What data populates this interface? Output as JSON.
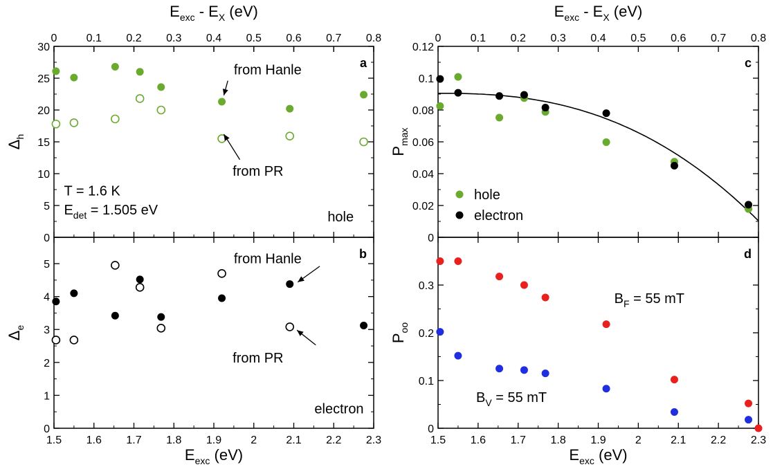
{
  "chart_data": [
    {
      "id": "a",
      "type": "scatter",
      "panel_label": "a",
      "xlim": [
        1.5,
        2.3
      ],
      "ylim": [
        0,
        30
      ],
      "yticks": [
        "0",
        "5",
        "10",
        "15",
        "20",
        "25",
        "30"
      ],
      "ylabel": {
        "main": "Δ",
        "sub": "h"
      },
      "top_axis": {
        "label": {
          "main": "E",
          "sub": "exc",
          "mid": " - E",
          "sub2": "X",
          "tail": " (eV)"
        },
        "ticks": [
          "0",
          "0.1",
          "0.2",
          "0.3",
          "0.4",
          "0.5",
          "0.6",
          "0.7",
          "0.8"
        ],
        "lim": [
          0,
          0.8
        ]
      },
      "series": [
        {
          "marker": "filled",
          "color": "#6aaa2e",
          "x": [
            1.505,
            1.55,
            1.653,
            1.715,
            1.768,
            1.92,
            2.09,
            2.275
          ],
          "y": [
            26.1,
            25.1,
            26.8,
            26.0,
            23.6,
            21.3,
            20.2,
            22.4
          ]
        },
        {
          "marker": "open",
          "color": "#6aaa2e",
          "x": [
            1.505,
            1.55,
            1.653,
            1.715,
            1.768,
            1.92,
            2.09,
            2.275
          ],
          "y": [
            17.8,
            18.0,
            18.6,
            21.8,
            20.0,
            15.5,
            15.9,
            15.0
          ]
        }
      ],
      "annotations": [
        {
          "text": "from Hanle",
          "x": 1.95,
          "y": 25.6,
          "arrow_to": [
            1.925,
            22.3
          ],
          "arrow_from": [
            1.935,
            24.6
          ]
        },
        {
          "text": "from PR",
          "x": 1.947,
          "y": 9.7,
          "arrow_to": [
            1.925,
            16.2
          ],
          "arrow_from": [
            1.965,
            12.2
          ]
        },
        {
          "text": "T = 1.6 K",
          "x": 1.525,
          "y": 6.6
        },
        {
          "text": "hole",
          "x": 2.25,
          "y": 2.5,
          "anchor": "end"
        }
      ],
      "det": {
        "main": "E",
        "sub": "det",
        "tail": " = 1.505 eV"
      }
    },
    {
      "id": "b",
      "type": "scatter",
      "panel_label": "b",
      "xlim": [
        1.5,
        2.3
      ],
      "ylim": [
        0,
        5.8
      ],
      "yticks": [
        "0",
        "1",
        "2",
        "3",
        "4",
        "5"
      ],
      "xticks": [
        "1.5",
        "1.6",
        "1.7",
        "1.8",
        "1.9",
        "2",
        "2.1",
        "2.2",
        "2.3"
      ],
      "xlabel": {
        "main": "E",
        "sub": "exc",
        "tail": " (eV)"
      },
      "ylabel": {
        "main": "Δ",
        "sub": "e"
      },
      "series": [
        {
          "marker": "filled",
          "color": "#000000",
          "x": [
            1.505,
            1.55,
            1.653,
            1.715,
            1.768,
            1.92,
            2.09,
            2.275
          ],
          "y": [
            3.85,
            4.1,
            3.42,
            4.52,
            3.38,
            3.95,
            4.38,
            3.12
          ]
        },
        {
          "marker": "open",
          "color": "#000000",
          "x": [
            1.505,
            1.55,
            1.653,
            1.715,
            1.768,
            1.92,
            2.09
          ],
          "y": [
            2.68,
            2.68,
            4.95,
            4.28,
            3.04,
            4.7,
            3.08
          ]
        }
      ],
      "annotations": [
        {
          "text": "from Hanle",
          "x": 1.95,
          "y": 5.01,
          "arrow_to": [
            2.11,
            4.44
          ],
          "arrow_from": [
            2.165,
            4.92
          ]
        },
        {
          "text": "from PR",
          "x": 1.947,
          "y": 2.0,
          "arrow_to": [
            2.108,
            2.98
          ],
          "arrow_from": [
            2.155,
            2.53
          ]
        },
        {
          "text": "electron",
          "x": 2.275,
          "y": 0.45,
          "anchor": "end"
        }
      ]
    },
    {
      "id": "c",
      "type": "scatter",
      "panel_label": "c",
      "xlim": [
        0,
        0.8
      ],
      "ylim": [
        0,
        0.12
      ],
      "yticks": [
        "0",
        "0.02",
        "0.04",
        "0.06",
        "0.08",
        "0.1",
        "0.12"
      ],
      "ylabel": {
        "main": "P",
        "sub": "max"
      },
      "top_axis": {
        "label": {
          "main": "E",
          "sub": "exc",
          "mid": " - E",
          "sub2": "X",
          "tail": " (eV)"
        },
        "ticks": [
          "0",
          "0.1",
          "0.2",
          "0.3",
          "0.4",
          "0.5",
          "0.6",
          "0.7",
          "0.8"
        ],
        "lim": [
          0,
          0.8
        ]
      },
      "series": [
        {
          "name": "hole",
          "marker": "filled",
          "color": "#6aaa2e",
          "x": [
            0.005,
            0.05,
            0.153,
            0.215,
            0.268,
            0.42,
            0.59,
            0.775
          ],
          "y": [
            0.0825,
            0.1008,
            0.0752,
            0.0875,
            0.0788,
            0.0598,
            0.0475,
            0.0178
          ]
        },
        {
          "name": "electron",
          "marker": "filled",
          "color": "#000000",
          "x": [
            0.005,
            0.05,
            0.153,
            0.215,
            0.268,
            0.42,
            0.59,
            0.775
          ],
          "y": [
            0.0995,
            0.0908,
            0.0888,
            0.0895,
            0.0815,
            0.078,
            0.045,
            0.0205
          ]
        }
      ],
      "fit_curve": {
        "a": 0.0905,
        "b": 0.14,
        "c": 2.5,
        "x": [
          0,
          0.8
        ],
        "color": "#000000"
      },
      "legend": "lower-left"
    },
    {
      "id": "d",
      "type": "scatter",
      "panel_label": "d",
      "xlim": [
        1.5,
        2.3
      ],
      "ylim": [
        0,
        0.4
      ],
      "yticks": [
        "0",
        "0.1",
        "0.2",
        "0.3"
      ],
      "xticks": [
        "1.5",
        "1.6",
        "1.7",
        "1.8",
        "1.9",
        "2",
        "2.1",
        "2.2",
        "2.3"
      ],
      "xlabel": {
        "main": "E",
        "sub": "exc",
        "tail": " (eV)"
      },
      "ylabel": {
        "main": "P",
        "sub": "oo"
      },
      "series": [
        {
          "marker": "filled",
          "color": "#e8201e",
          "x": [
            1.505,
            1.55,
            1.653,
            1.715,
            1.768,
            1.92,
            2.09,
            2.275,
            2.3
          ],
          "y": [
            0.35,
            0.35,
            0.318,
            0.3,
            0.274,
            0.218,
            0.102,
            0.052,
            0.0
          ]
        },
        {
          "marker": "filled",
          "color": "#1f2fe0",
          "x": [
            1.505,
            1.55,
            1.653,
            1.715,
            1.768,
            1.92,
            2.09,
            2.275
          ],
          "y": [
            0.202,
            0.152,
            0.125,
            0.122,
            0.115,
            0.083,
            0.034,
            0.018
          ]
        }
      ],
      "annotations": [
        {
          "text": "B",
          "sub": "F",
          "tail": " = 55 mT",
          "x": 1.94,
          "y": 0.262,
          "color": "#000000"
        },
        {
          "text": "B",
          "sub": "V",
          "tail": " = 55 mT",
          "x": 1.595,
          "y": 0.055,
          "color": "#000000"
        }
      ]
    }
  ]
}
